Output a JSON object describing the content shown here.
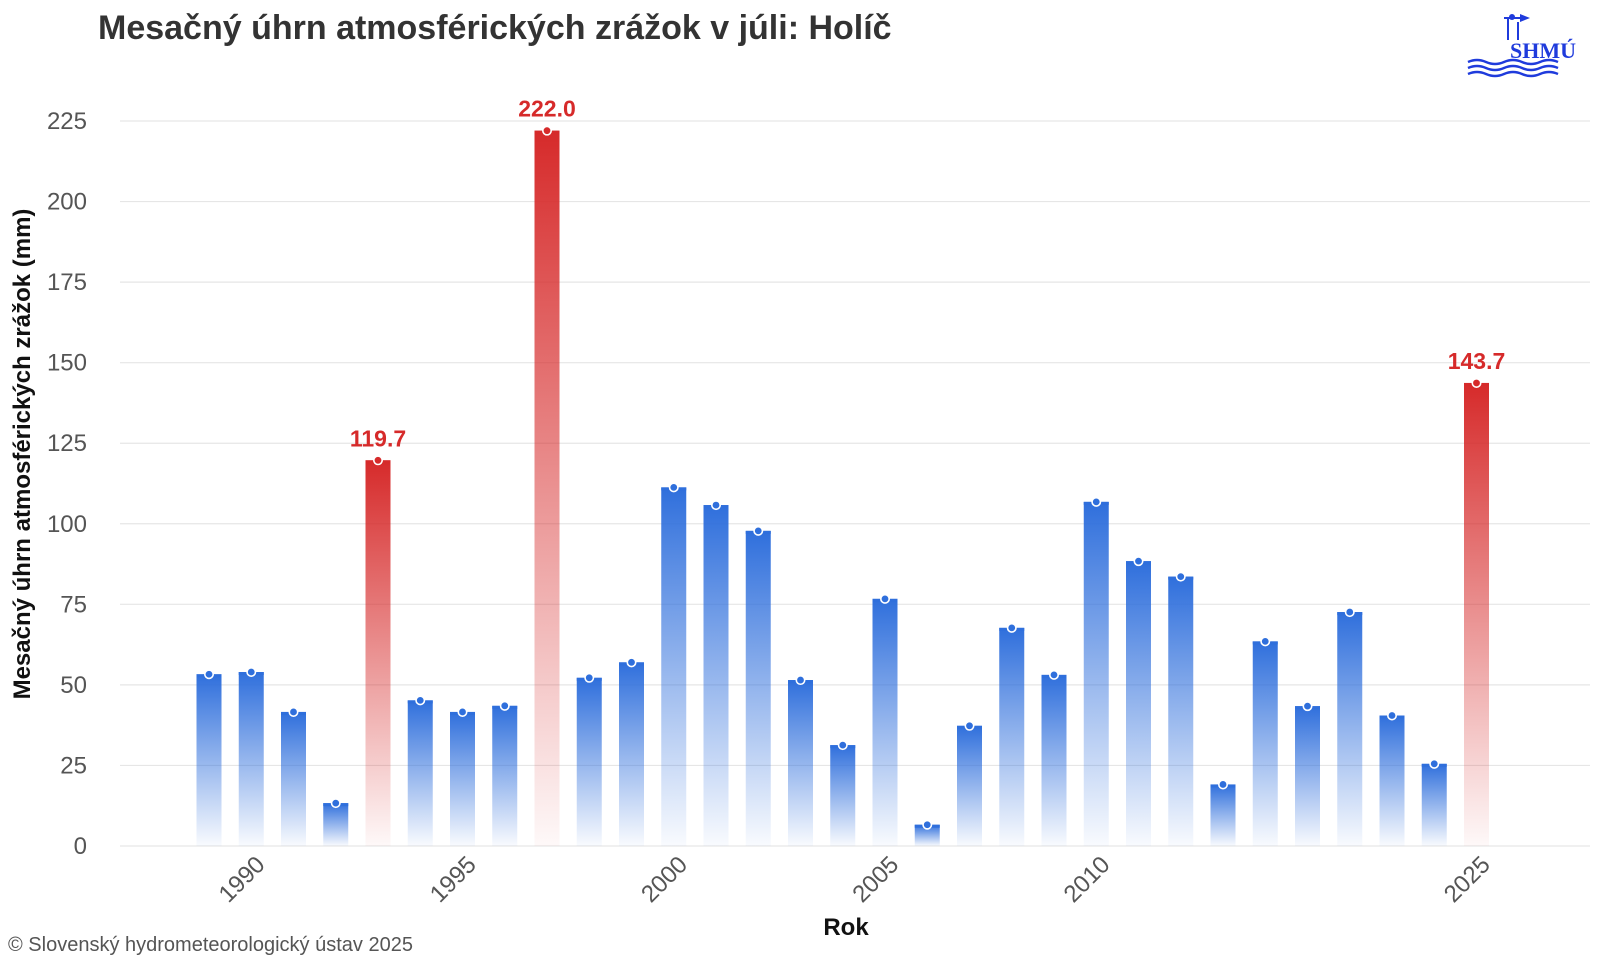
{
  "title": "Mesačný úhrn atmosférických zrážok v júli: Holíč",
  "credit": "© Slovenský hydrometeorologický ústav 2025",
  "logo": {
    "text": "SHMÚ",
    "icon": "shmu-logo-icon"
  },
  "colors": {
    "normal": "#2f6fdc",
    "extreme": "#d62a2a",
    "grid": "#e6e6e6",
    "text": "#333333"
  },
  "chart_data": {
    "type": "bar",
    "title": "Mesačný úhrn atmosférických zrážok v júli: Holíč",
    "xlabel": "Rok",
    "ylabel": "Mesačný úhrn atmosférických zrážok (mm)",
    "ylim": [
      0,
      225
    ],
    "yticks": [
      0,
      25,
      50,
      75,
      100,
      125,
      150,
      175,
      200,
      225
    ],
    "xticks": [
      1990,
      1995,
      2000,
      2005,
      2010,
      2025
    ],
    "grid": true,
    "legend": "none",
    "x": [
      1989,
      1990,
      1991,
      1992,
      1993,
      1994,
      1995,
      1996,
      1997,
      1998,
      1999,
      2000,
      2001,
      2002,
      2003,
      2004,
      2005,
      2006,
      2007,
      2008,
      2009,
      2010,
      2011,
      2012,
      2013,
      2014,
      2015,
      2016,
      2017,
      2018,
      2025
    ],
    "values": [
      53.3,
      54.0,
      41.6,
      13.3,
      119.7,
      45.2,
      41.6,
      43.5,
      222.0,
      52.2,
      57.0,
      111.3,
      105.8,
      97.8,
      51.5,
      31.3,
      76.7,
      6.6,
      37.3,
      67.7,
      53.1,
      106.8,
      88.4,
      83.6,
      19.1,
      63.5,
      43.4,
      72.6,
      40.5,
      25.5,
      143.7
    ],
    "highlighted": [
      {
        "x": 1993,
        "value": 119.7,
        "label": "119.7"
      },
      {
        "x": 1997,
        "value": 222.0,
        "label": "222.0"
      },
      {
        "x": 2025,
        "value": 143.7,
        "label": "143.7"
      }
    ]
  }
}
